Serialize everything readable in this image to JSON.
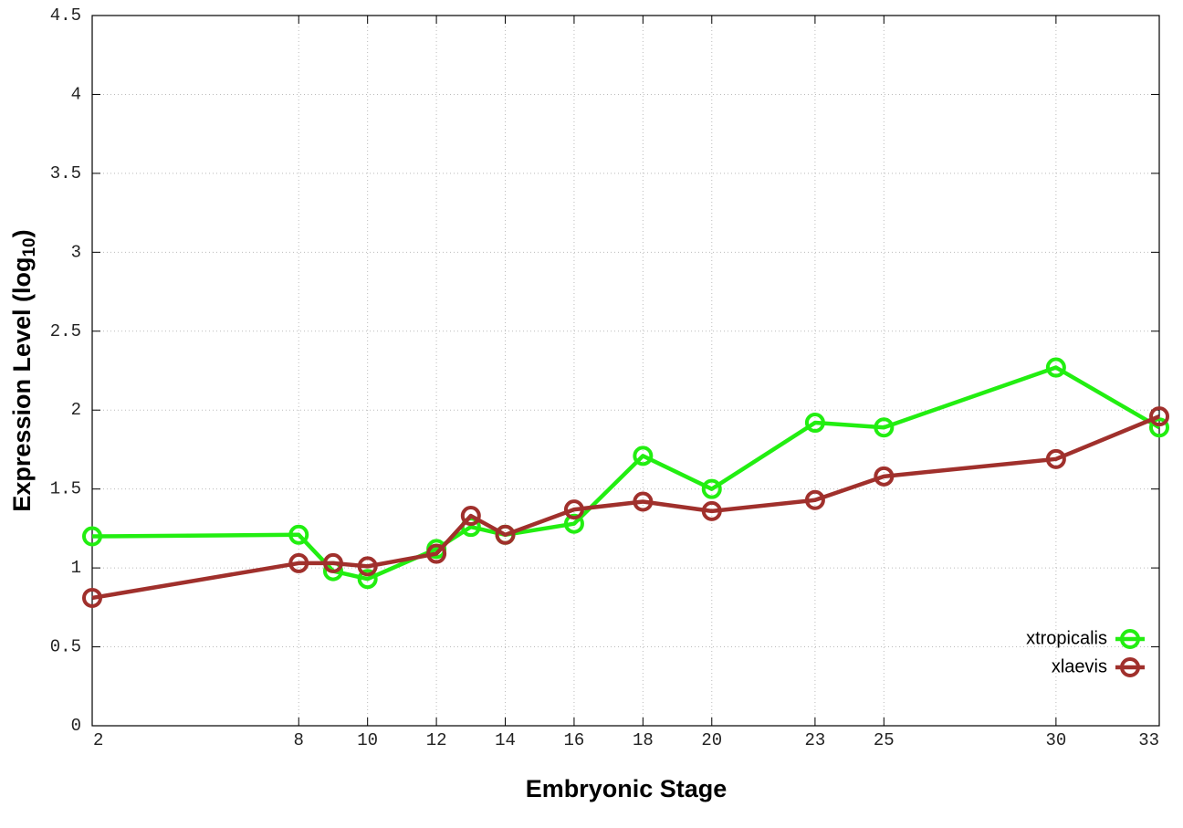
{
  "chart_data": {
    "type": "line",
    "xlabel": "Embryonic Stage",
    "ylabel": [
      "Expression Level (log",
      "10",
      ")"
    ],
    "x": [
      2,
      8,
      9,
      10,
      12,
      13,
      14,
      16,
      18,
      20,
      23,
      25,
      30,
      33
    ],
    "series": [
      {
        "name": "xtropicalis",
        "color": "#22ee11",
        "values": [
          1.2,
          1.21,
          0.98,
          0.93,
          1.12,
          1.26,
          1.21,
          1.28,
          1.71,
          1.5,
          1.92,
          1.89,
          2.27,
          1.89
        ]
      },
      {
        "name": "xlaevis",
        "color": "#a0302c",
        "values": [
          0.81,
          1.03,
          1.03,
          1.01,
          1.09,
          1.33,
          1.21,
          1.37,
          1.42,
          1.36,
          1.43,
          1.58,
          1.69,
          1.96
        ]
      }
    ],
    "xlim": [
      2,
      33
    ],
    "xticks": [
      2,
      8,
      10,
      12,
      14,
      16,
      18,
      20,
      23,
      25,
      30,
      33
    ],
    "ylim": [
      0,
      4.5
    ],
    "yticks": [
      0,
      0.5,
      1,
      1.5,
      2,
      2.5,
      3,
      3.5,
      4,
      4.5
    ],
    "grid": true,
    "legend": "lower-right"
  }
}
